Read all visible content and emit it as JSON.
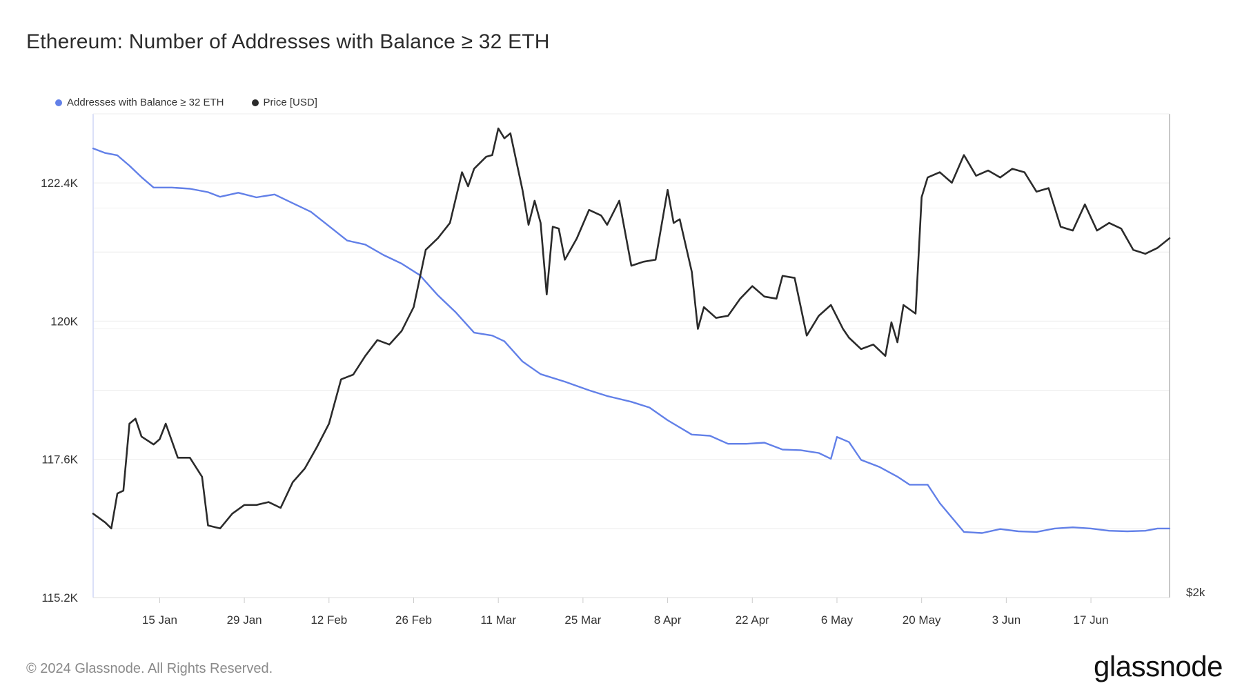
{
  "title": "Ethereum: Number of Addresses with Balance ≥ 32 ETH",
  "footer": "© 2024 Glassnode. All Rights Reserved.",
  "brand": "glassnode",
  "chart_data": {
    "type": "line",
    "title": "Ethereum: Number of Addresses with Balance ≥ 32 ETH",
    "legend_position": "top-left",
    "grid": true,
    "x_tick_labels": [
      "15 Jan",
      "29 Jan",
      "12 Feb",
      "26 Feb",
      "11 Mar",
      "25 Mar",
      "8 Apr",
      "22 Apr",
      "6 May",
      "20 May",
      "3 Jun",
      "17 Jun"
    ],
    "x_range": [
      "2024-01-04",
      "2024-06-30"
    ],
    "y_left": {
      "tick_labels": [
        "115.2K",
        "117.6K",
        "120K",
        "122.4K"
      ],
      "ticks": [
        115200,
        117600,
        120000,
        122400
      ],
      "range": [
        115200,
        123600
      ]
    },
    "y_right": {
      "tick_labels": [
        "$2k"
      ],
      "scale": "log",
      "range": [
        2000,
        4150
      ]
    },
    "series": [
      {
        "name": "Addresses with Balance ≥ 32 ETH",
        "axis": "left",
        "color": "#6280e8",
        "points": [
          [
            "2024-01-04",
            123000
          ],
          [
            "2024-01-06",
            122920
          ],
          [
            "2024-01-08",
            122880
          ],
          [
            "2024-01-10",
            122700
          ],
          [
            "2024-01-12",
            122500
          ],
          [
            "2024-01-14",
            122320
          ],
          [
            "2024-01-17",
            122320
          ],
          [
            "2024-01-20",
            122300
          ],
          [
            "2024-01-23",
            122240
          ],
          [
            "2024-01-25",
            122160
          ],
          [
            "2024-01-28",
            122230
          ],
          [
            "2024-01-31",
            122150
          ],
          [
            "2024-02-03",
            122200
          ],
          [
            "2024-02-06",
            122050
          ],
          [
            "2024-02-09",
            121900
          ],
          [
            "2024-02-12",
            121650
          ],
          [
            "2024-02-15",
            121400
          ],
          [
            "2024-02-18",
            121330
          ],
          [
            "2024-02-21",
            121150
          ],
          [
            "2024-02-24",
            121000
          ],
          [
            "2024-02-27",
            120800
          ],
          [
            "2024-03-01",
            120450
          ],
          [
            "2024-03-04",
            120150
          ],
          [
            "2024-03-07",
            119800
          ],
          [
            "2024-03-10",
            119750
          ],
          [
            "2024-03-12",
            119650
          ],
          [
            "2024-03-15",
            119300
          ],
          [
            "2024-03-18",
            119080
          ],
          [
            "2024-03-22",
            118950
          ],
          [
            "2024-03-26",
            118800
          ],
          [
            "2024-03-29",
            118700
          ],
          [
            "2024-04-02",
            118600
          ],
          [
            "2024-04-05",
            118500
          ],
          [
            "2024-04-08",
            118280
          ],
          [
            "2024-04-12",
            118030
          ],
          [
            "2024-04-15",
            118010
          ],
          [
            "2024-04-18",
            117870
          ],
          [
            "2024-04-21",
            117870
          ],
          [
            "2024-04-24",
            117890
          ],
          [
            "2024-04-27",
            117770
          ],
          [
            "2024-04-30",
            117760
          ],
          [
            "2024-05-03",
            117710
          ],
          [
            "2024-05-05",
            117610
          ],
          [
            "2024-05-06",
            117990
          ],
          [
            "2024-05-08",
            117900
          ],
          [
            "2024-05-10",
            117590
          ],
          [
            "2024-05-13",
            117470
          ],
          [
            "2024-05-16",
            117300
          ],
          [
            "2024-05-18",
            117160
          ],
          [
            "2024-05-21",
            117160
          ],
          [
            "2024-05-23",
            116840
          ],
          [
            "2024-05-27",
            116340
          ],
          [
            "2024-05-30",
            116320
          ],
          [
            "2024-06-02",
            116390
          ],
          [
            "2024-06-05",
            116350
          ],
          [
            "2024-06-08",
            116340
          ],
          [
            "2024-06-11",
            116400
          ],
          [
            "2024-06-14",
            116420
          ],
          [
            "2024-06-17",
            116400
          ],
          [
            "2024-06-20",
            116360
          ],
          [
            "2024-06-23",
            116350
          ],
          [
            "2024-06-26",
            116360
          ],
          [
            "2024-06-28",
            116400
          ],
          [
            "2024-06-30",
            116400
          ]
        ]
      },
      {
        "name": "Price [USD]",
        "axis": "right",
        "color": "#2b2b2b",
        "points": [
          [
            "2024-01-04",
            2270
          ],
          [
            "2024-01-06",
            2240
          ],
          [
            "2024-01-07",
            2220
          ],
          [
            "2024-01-08",
            2340
          ],
          [
            "2024-01-09",
            2350
          ],
          [
            "2024-01-10",
            2600
          ],
          [
            "2024-01-11",
            2620
          ],
          [
            "2024-01-12",
            2550
          ],
          [
            "2024-01-14",
            2520
          ],
          [
            "2024-01-15",
            2540
          ],
          [
            "2024-01-16",
            2600
          ],
          [
            "2024-01-18",
            2470
          ],
          [
            "2024-01-20",
            2470
          ],
          [
            "2024-01-22",
            2400
          ],
          [
            "2024-01-23",
            2230
          ],
          [
            "2024-01-25",
            2220
          ],
          [
            "2024-01-27",
            2270
          ],
          [
            "2024-01-29",
            2300
          ],
          [
            "2024-01-31",
            2300
          ],
          [
            "2024-02-02",
            2310
          ],
          [
            "2024-02-04",
            2290
          ],
          [
            "2024-02-06",
            2380
          ],
          [
            "2024-02-08",
            2430
          ],
          [
            "2024-02-10",
            2510
          ],
          [
            "2024-02-12",
            2600
          ],
          [
            "2024-02-14",
            2780
          ],
          [
            "2024-02-16",
            2800
          ],
          [
            "2024-02-18",
            2880
          ],
          [
            "2024-02-20",
            2950
          ],
          [
            "2024-02-22",
            2930
          ],
          [
            "2024-02-24",
            2990
          ],
          [
            "2024-02-26",
            3100
          ],
          [
            "2024-02-28",
            3380
          ],
          [
            "2024-03-01",
            3440
          ],
          [
            "2024-03-03",
            3520
          ],
          [
            "2024-03-05",
            3800
          ],
          [
            "2024-03-06",
            3720
          ],
          [
            "2024-03-07",
            3820
          ],
          [
            "2024-03-09",
            3890
          ],
          [
            "2024-03-10",
            3900
          ],
          [
            "2024-03-11",
            4060
          ],
          [
            "2024-03-12",
            4000
          ],
          [
            "2024-03-13",
            4030
          ],
          [
            "2024-03-15",
            3700
          ],
          [
            "2024-03-16",
            3510
          ],
          [
            "2024-03-17",
            3640
          ],
          [
            "2024-03-18",
            3520
          ],
          [
            "2024-03-19",
            3160
          ],
          [
            "2024-03-20",
            3500
          ],
          [
            "2024-03-21",
            3490
          ],
          [
            "2024-03-22",
            3330
          ],
          [
            "2024-03-24",
            3440
          ],
          [
            "2024-03-26",
            3590
          ],
          [
            "2024-03-28",
            3560
          ],
          [
            "2024-03-29",
            3510
          ],
          [
            "2024-03-31",
            3640
          ],
          [
            "2024-04-02",
            3300
          ],
          [
            "2024-04-04",
            3320
          ],
          [
            "2024-04-06",
            3330
          ],
          [
            "2024-04-08",
            3700
          ],
          [
            "2024-04-09",
            3520
          ],
          [
            "2024-04-10",
            3540
          ],
          [
            "2024-04-12",
            3270
          ],
          [
            "2024-04-13",
            3000
          ],
          [
            "2024-04-14",
            3100
          ],
          [
            "2024-04-16",
            3050
          ],
          [
            "2024-04-18",
            3060
          ],
          [
            "2024-04-20",
            3140
          ],
          [
            "2024-04-22",
            3200
          ],
          [
            "2024-04-24",
            3150
          ],
          [
            "2024-04-26",
            3140
          ],
          [
            "2024-04-27",
            3250
          ],
          [
            "2024-04-29",
            3240
          ],
          [
            "2024-05-01",
            2970
          ],
          [
            "2024-05-03",
            3060
          ],
          [
            "2024-05-05",
            3110
          ],
          [
            "2024-05-07",
            3000
          ],
          [
            "2024-05-08",
            2960
          ],
          [
            "2024-05-10",
            2910
          ],
          [
            "2024-05-12",
            2930
          ],
          [
            "2024-05-14",
            2880
          ],
          [
            "2024-05-15",
            3030
          ],
          [
            "2024-05-16",
            2940
          ],
          [
            "2024-05-17",
            3110
          ],
          [
            "2024-05-19",
            3070
          ],
          [
            "2024-05-20",
            3660
          ],
          [
            "2024-05-21",
            3770
          ],
          [
            "2024-05-23",
            3800
          ],
          [
            "2024-05-25",
            3740
          ],
          [
            "2024-05-27",
            3900
          ],
          [
            "2024-05-29",
            3780
          ],
          [
            "2024-05-31",
            3810
          ],
          [
            "2024-06-02",
            3770
          ],
          [
            "2024-06-04",
            3820
          ],
          [
            "2024-06-06",
            3800
          ],
          [
            "2024-06-08",
            3690
          ],
          [
            "2024-06-10",
            3710
          ],
          [
            "2024-06-12",
            3500
          ],
          [
            "2024-06-14",
            3480
          ],
          [
            "2024-06-16",
            3620
          ],
          [
            "2024-06-18",
            3480
          ],
          [
            "2024-06-20",
            3520
          ],
          [
            "2024-06-22",
            3490
          ],
          [
            "2024-06-24",
            3380
          ],
          [
            "2024-06-26",
            3360
          ],
          [
            "2024-06-28",
            3390
          ],
          [
            "2024-06-30",
            3440
          ]
        ]
      }
    ]
  }
}
